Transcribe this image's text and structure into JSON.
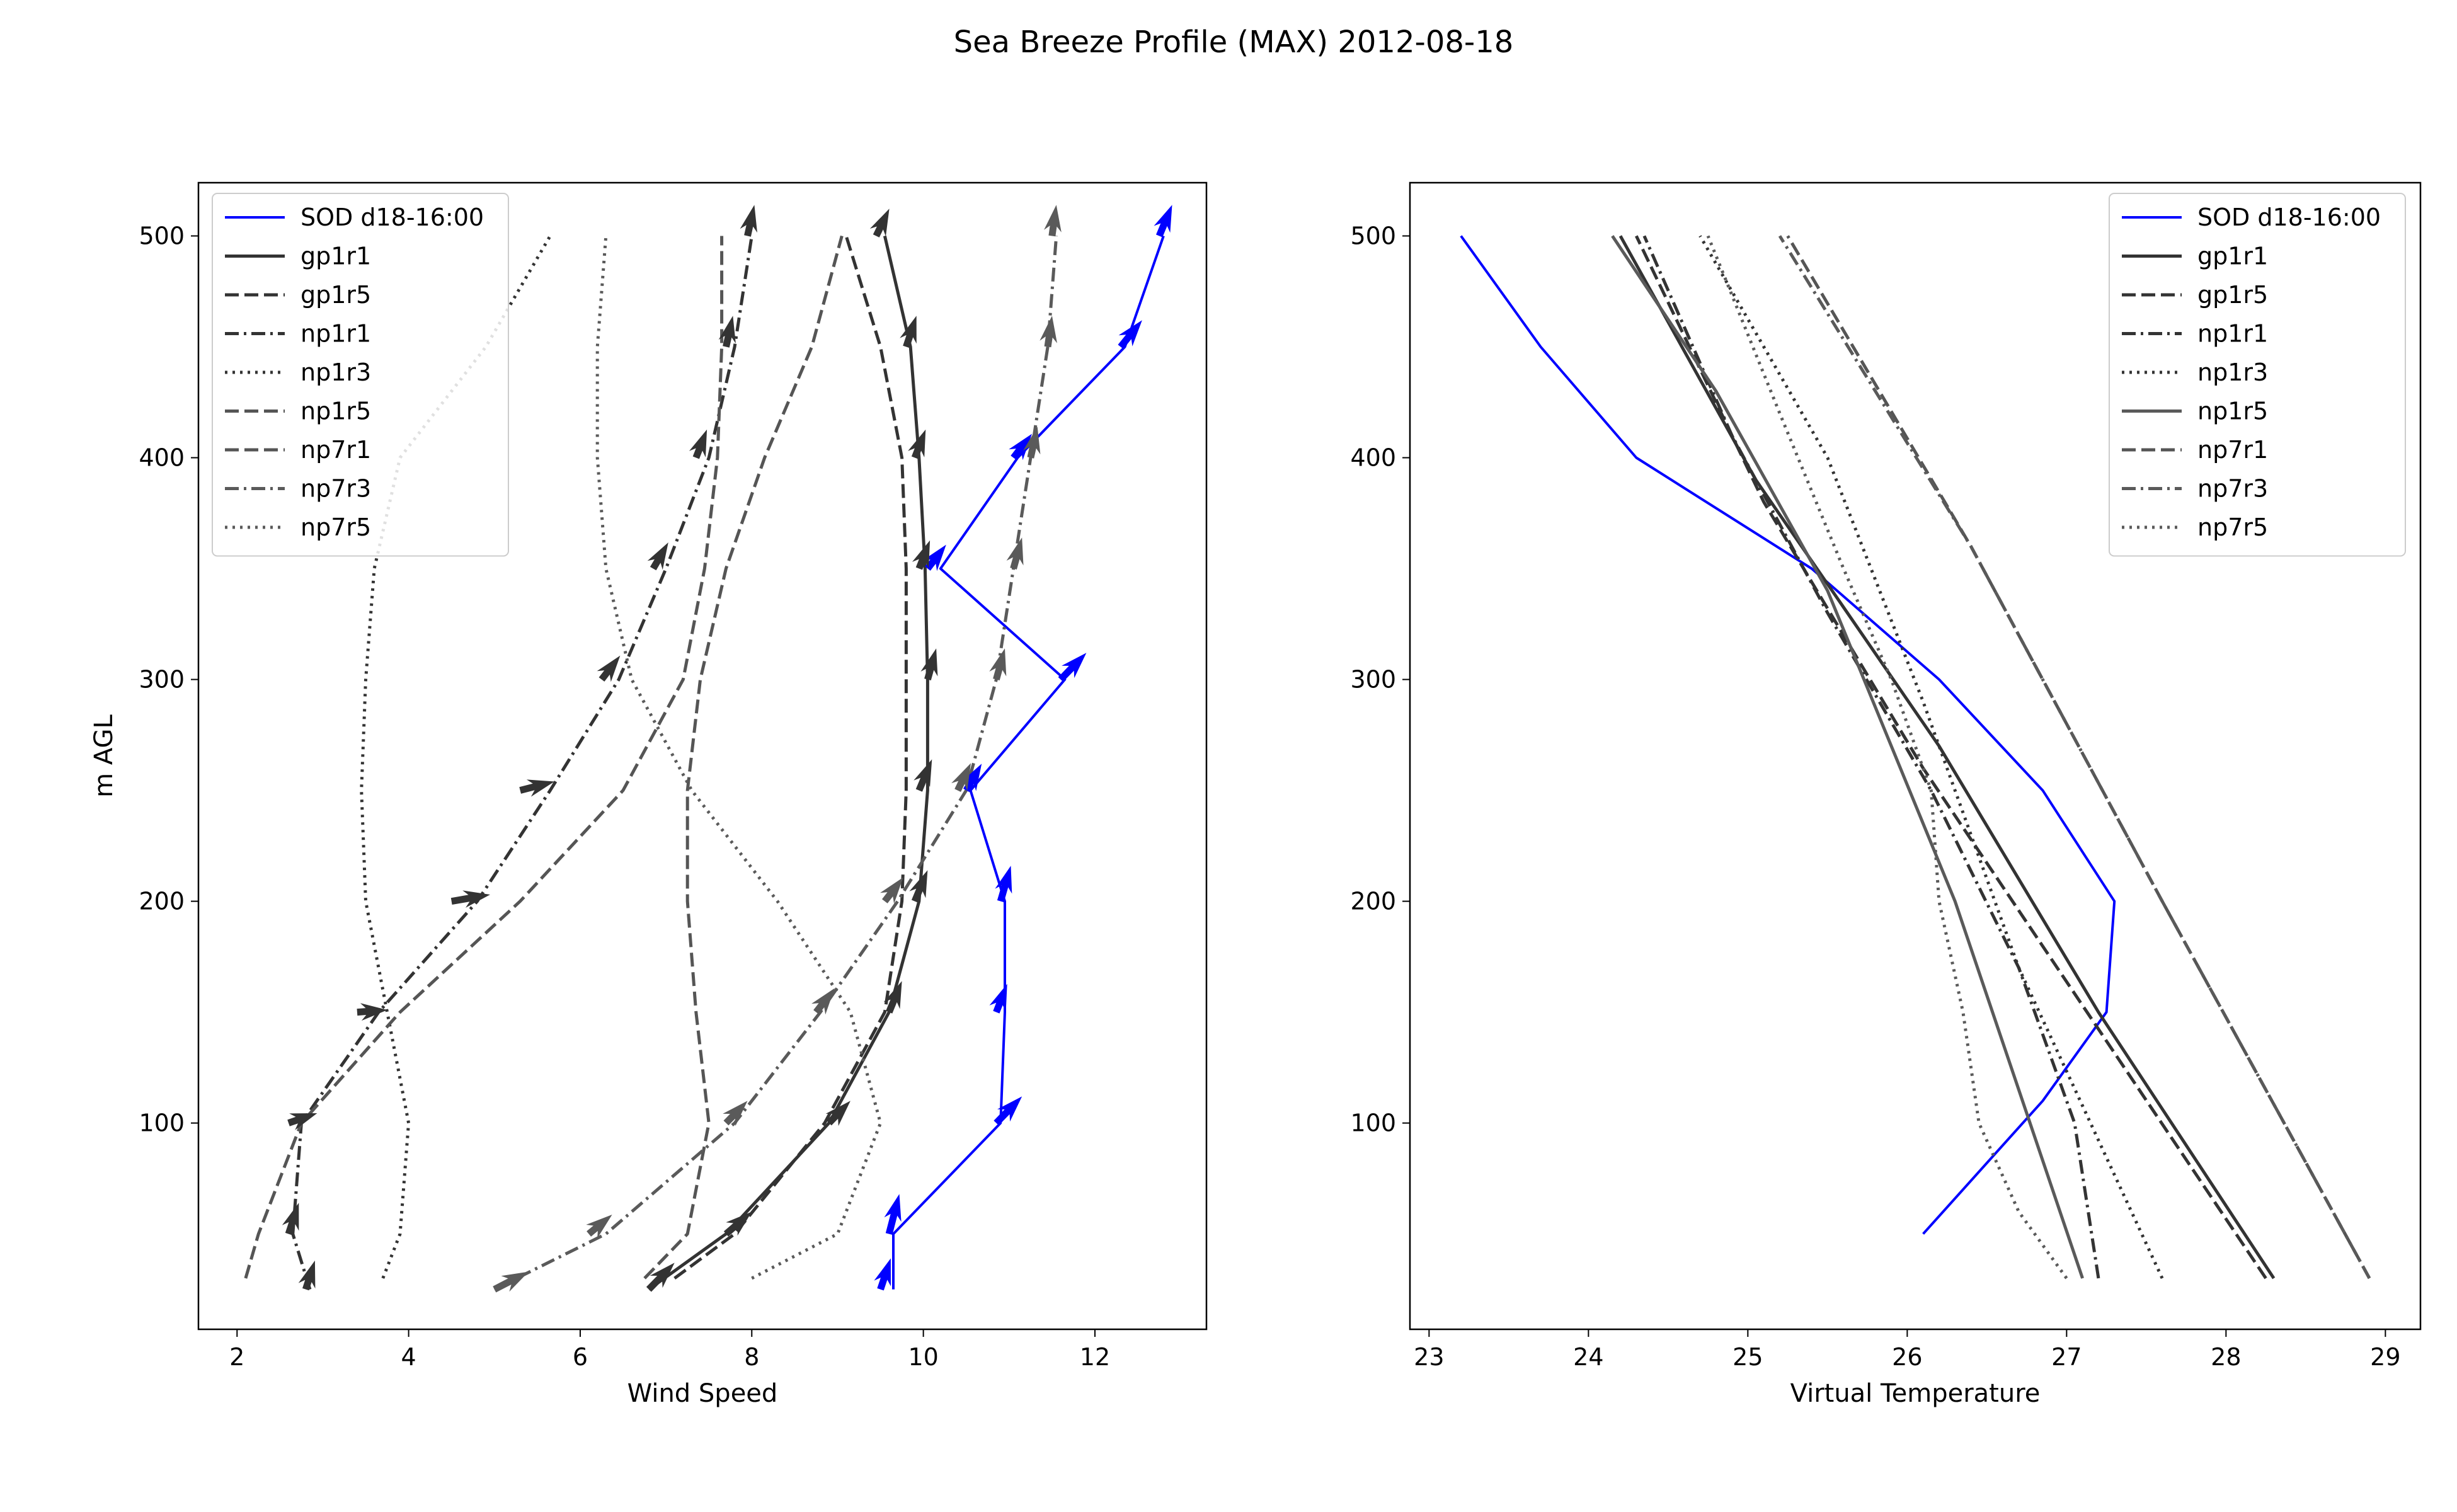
{
  "figure_title": "Sea Breeze Profile (MAX) 2012-08-18",
  "colors": {
    "sod": "#0000ff",
    "gp1r1": "#333333",
    "gp1r5": "#333333",
    "np1r1": "#333333",
    "np1r3": "#333333",
    "np1r5_left": "#555555",
    "np1r5_right": "#5a5a5a",
    "np7r1": "#555555",
    "np7r3": "#5a5a5a",
    "np7r5": "#5a5a5a"
  },
  "chart_data": [
    {
      "type": "line",
      "title": "",
      "xlabel": "Wind Speed",
      "ylabel": "m AGL",
      "xlim": [
        1.55,
        13.3
      ],
      "ylim": [
        7,
        524
      ],
      "xticks": [
        2,
        4,
        6,
        8,
        10,
        12
      ],
      "yticks": [
        100,
        200,
        300,
        400,
        500
      ],
      "legend_position": "top-left",
      "series": [
        {
          "name": "SOD d18-16:00",
          "style": "solid",
          "color": "#0000ff",
          "x": [
            9.65,
            9.65,
            10.9,
            10.95,
            10.95,
            10.55,
            11.65,
            10.2,
            11.1,
            12.35,
            12.8
          ],
          "y": [
            25,
            50,
            100,
            150,
            200,
            250,
            300,
            350,
            400,
            450,
            500
          ],
          "arrows": {
            "x": [
              9.5,
              9.6,
              10.85,
              10.85,
              10.9,
              10.5,
              11.6,
              10.05,
              11.05,
              12.3,
              12.75
            ],
            "y": [
              25,
              50,
              100,
              150,
              200,
              250,
              300,
              350,
              400,
              450,
              500
            ],
            "dx": [
              0.12,
              0.12,
              0.3,
              0.12,
              0.12,
              0.18,
              0.3,
              0.2,
              0.2,
              0.25,
              0.15
            ],
            "dy": [
              14,
              18,
              12,
              12,
              16,
              12,
              12,
              10,
              10,
              12,
              14
            ]
          }
        },
        {
          "name": "gp1r1",
          "style": "solid",
          "color": "#333333",
          "x": [
            6.8,
            7.7,
            8.9,
            9.6,
            9.95,
            10.05,
            10.05,
            10.02,
            9.95,
            9.85,
            9.55
          ],
          "y": [
            25,
            50,
            100,
            150,
            200,
            250,
            300,
            350,
            400,
            450,
            500
          ],
          "arrows": {
            "x": [
              6.8,
              7.7,
              8.9,
              9.6,
              9.9,
              9.95,
              10.05,
              9.95,
              9.9,
              9.8,
              9.45
            ],
            "y": [
              25,
              50,
              100,
              150,
              200,
              250,
              300,
              350,
              400,
              450,
              500
            ],
            "dx": [
              0.3,
              0.3,
              0.25,
              0.15,
              0.15,
              0.15,
              0.1,
              0.12,
              0.12,
              0.12,
              0.15
            ],
            "dy": [
              12,
              10,
              10,
              14,
              14,
              14,
              14,
              12,
              12,
              14,
              12
            ]
          }
        },
        {
          "name": "gp1r5",
          "style": "dashed",
          "color": "#333333",
          "x": [
            7.1,
            7.8,
            8.85,
            9.55,
            9.75,
            9.8,
            9.8,
            9.8,
            9.75,
            9.5,
            9.1
          ],
          "y": [
            30,
            50,
            100,
            150,
            200,
            250,
            300,
            350,
            400,
            450,
            500
          ]
        },
        {
          "name": "np1r1",
          "style": "dashdot",
          "color": "#333333",
          "x": [
            2.85,
            2.65,
            2.75,
            3.65,
            4.8,
            5.65,
            6.45,
            7.0,
            7.5,
            7.8,
            8.0
          ],
          "y": [
            25,
            50,
            100,
            150,
            200,
            250,
            300,
            350,
            400,
            450,
            500
          ],
          "arrows": {
            "x": [
              2.8,
              2.6,
              2.6,
              3.4,
              4.5,
              5.3,
              6.25,
              6.85,
              7.35,
              7.7,
              7.95
            ],
            "y": [
              25,
              50,
              100,
              150,
              200,
              250,
              300,
              350,
              400,
              450,
              500
            ],
            "dx": [
              0.1,
              0.12,
              0.3,
              0.35,
              0.45,
              0.4,
              0.2,
              0.15,
              0.12,
              0.08,
              0.08
            ],
            "dy": [
              12,
              14,
              4,
              1,
              3,
              4,
              10,
              10,
              12,
              14,
              14
            ]
          }
        },
        {
          "name": "np1r3",
          "style": "dotted",
          "color": "#333333",
          "x": [
            3.7,
            3.9,
            4.0,
            3.75,
            3.5,
            3.45,
            3.5,
            3.6,
            3.9,
            4.9,
            5.65
          ],
          "y": [
            30,
            50,
            100,
            150,
            200,
            250,
            300,
            350,
            400,
            450,
            500
          ]
        },
        {
          "name": "np1r5",
          "style": "dashed",
          "color": "#555555",
          "x": [
            2.1,
            2.25,
            2.75,
            3.9,
            5.3,
            6.5,
            7.2,
            7.45,
            7.6,
            7.65,
            7.65
          ],
          "y": [
            30,
            50,
            100,
            150,
            200,
            250,
            300,
            350,
            400,
            450,
            500
          ]
        },
        {
          "name": "np7r1",
          "style": "dashed",
          "color": "#555555",
          "x": [
            6.75,
            7.25,
            7.5,
            7.35,
            7.25,
            7.25,
            7.4,
            7.7,
            8.15,
            8.7,
            9.05
          ],
          "y": [
            30,
            50,
            100,
            150,
            200,
            250,
            300,
            350,
            400,
            450,
            500
          ]
        },
        {
          "name": "np7r3",
          "style": "dashdot",
          "color": "#5a5a5a",
          "x": [
            5.0,
            6.3,
            7.8,
            8.8,
            9.7,
            10.5,
            10.85,
            11.05,
            11.25,
            11.45,
            11.55
          ],
          "y": [
            25,
            50,
            100,
            150,
            200,
            250,
            300,
            350,
            400,
            450,
            500
          ],
          "arrows": {
            "x": [
              5.0,
              6.1,
              7.7,
              8.75,
              9.55,
              10.4,
              10.85,
              11.05,
              11.25,
              11.45,
              11.5
            ],
            "y": [
              25,
              50,
              100,
              150,
              200,
              250,
              300,
              350,
              400,
              450,
              500
            ],
            "dx": [
              0.4,
              0.25,
              0.25,
              0.2,
              0.2,
              0.15,
              0.1,
              0.1,
              0.08,
              0.05,
              0.05
            ],
            "dy": [
              8,
              8,
              10,
              10,
              10,
              12,
              14,
              14,
              14,
              14,
              14
            ]
          }
        },
        {
          "name": "np7r5",
          "style": "dotted",
          "color": "#5a5a5a",
          "x": [
            8.0,
            9.0,
            9.5,
            9.15,
            8.3,
            7.3,
            6.6,
            6.3,
            6.2,
            6.2,
            6.3
          ],
          "y": [
            30,
            50,
            100,
            150,
            200,
            250,
            300,
            350,
            400,
            450,
            500
          ]
        }
      ]
    },
    {
      "type": "line",
      "title": "",
      "xlabel": "Virtual Temperature",
      "ylabel": "",
      "xlim": [
        22.88,
        29.22
      ],
      "ylim": [
        7,
        524
      ],
      "xticks": [
        23,
        24,
        25,
        26,
        27,
        28,
        29
      ],
      "yticks": [
        100,
        200,
        300,
        400,
        500
      ],
      "legend_position": "top-right",
      "series": [
        {
          "name": "SOD d18-16:00",
          "style": "solid",
          "color": "#0000ff",
          "x": [
            26.1,
            26.85,
            27.25,
            27.3,
            26.85,
            26.2,
            25.4,
            24.3,
            23.7,
            23.2
          ],
          "y": [
            50,
            110,
            150,
            200,
            250,
            300,
            350,
            400,
            450,
            500
          ]
        },
        {
          "name": "gp1r1",
          "style": "solid",
          "color": "#333333",
          "x": [
            28.3,
            27.2,
            26.2,
            25.05,
            24.2
          ],
          "y": [
            30,
            150,
            270,
            390,
            500
          ]
        },
        {
          "name": "gp1r5",
          "style": "dashed",
          "color": "#333333",
          "x": [
            28.25,
            26.1,
            25.1,
            24.3
          ],
          "y": [
            30,
            260,
            380,
            500
          ]
        },
        {
          "name": "np1r1",
          "style": "dashdot",
          "color": "#333333",
          "x": [
            27.2,
            27.05,
            26.7,
            26.15,
            25.5,
            24.9,
            24.35
          ],
          "y": [
            30,
            100,
            170,
            250,
            330,
            410,
            500
          ]
        },
        {
          "name": "np1r3",
          "style": "dotted",
          "color": "#333333",
          "x": [
            27.6,
            26.7,
            26.1,
            25.5,
            25.1,
            24.7
          ],
          "y": [
            30,
            170,
            290,
            400,
            450,
            500
          ]
        },
        {
          "name": "np1r5",
          "style": "solid",
          "color": "#5a5a5a",
          "x": [
            27.1,
            26.3,
            25.5,
            24.8,
            24.15
          ],
          "y": [
            30,
            200,
            340,
            430,
            500
          ]
        },
        {
          "name": "np7r1",
          "style": "dashed",
          "color": "#555555",
          "x": [
            28.9,
            27.6,
            26.4,
            25.25
          ],
          "y": [
            30,
            200,
            360,
            500
          ]
        },
        {
          "name": "np7r3",
          "style": "dashdot",
          "color": "#5a5a5a",
          "x": [
            28.9,
            27.6,
            26.4,
            25.2
          ],
          "y": [
            30,
            200,
            360,
            500
          ]
        },
        {
          "name": "np7r5",
          "style": "dotted",
          "color": "#5a5a5a",
          "x": [
            27.0,
            26.7,
            26.45,
            26.35,
            26.2,
            26.15,
            25.9,
            25.6,
            25.2,
            24.75
          ],
          "y": [
            30,
            60,
            100,
            150,
            200,
            250,
            300,
            350,
            420,
            500
          ]
        }
      ]
    }
  ]
}
